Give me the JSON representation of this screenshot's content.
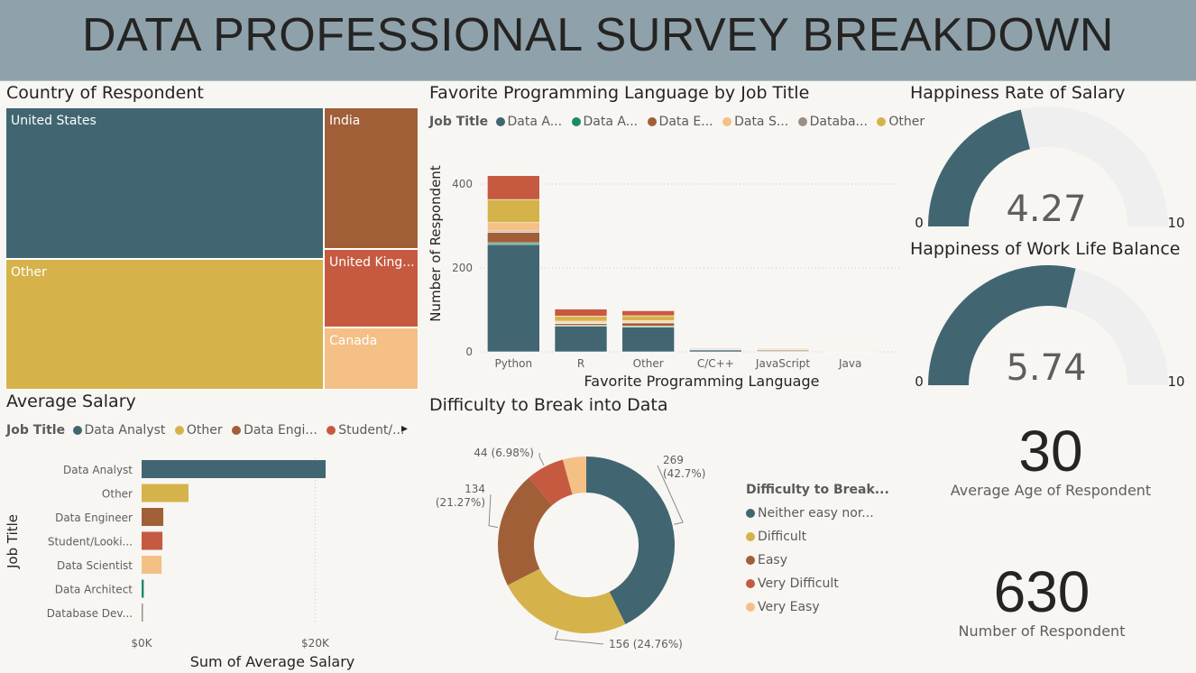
{
  "header": {
    "title": "DATA PROFESSIONAL SURVEY BREAKDOWN"
  },
  "colors": {
    "data_analyst": "#416671",
    "other": "#d6b24b",
    "data_engineer": "#a15f38",
    "student": "#c65a41",
    "data_scientist": "#f4c086",
    "data_architect": "#1b8a6b",
    "database_dev": "#9b8f85",
    "gauge_track": "#efefef"
  },
  "treemap": {
    "title": "Country of Respondent",
    "tiles": [
      {
        "label": "United States",
        "color": "#416671"
      },
      {
        "label": "Other",
        "color": "#d6b24b"
      },
      {
        "label": "India",
        "color": "#a15f38"
      },
      {
        "label": "United King...",
        "color": "#c65a41"
      },
      {
        "label": "Canada",
        "color": "#f4c086"
      }
    ]
  },
  "lang_chart": {
    "title": "Favorite Programming Language by Job Title",
    "legend_title": "Job Title",
    "legend": [
      {
        "name": "Data A...",
        "color": "#416671"
      },
      {
        "name": "Data A...",
        "color": "#1b8a6b"
      },
      {
        "name": "Data E...",
        "color": "#a15f38"
      },
      {
        "name": "Data S...",
        "color": "#f4c086"
      },
      {
        "name": "Databa...",
        "color": "#9b8f85"
      },
      {
        "name": "Other",
        "color": "#d6b24b"
      }
    ],
    "xlabel": "Favorite Programming Language",
    "ylabel": "Number of Respondent"
  },
  "salary_chart": {
    "title": "Average Salary",
    "legend_title": "Job Title",
    "legend": [
      {
        "name": "Data Analyst",
        "color": "#416671"
      },
      {
        "name": "Other",
        "color": "#d6b24b"
      },
      {
        "name": "Data Engi...",
        "color": "#a15f38"
      },
      {
        "name": "Student/...",
        "color": "#c65a41"
      }
    ],
    "more_arrow": "▸",
    "xlabel": "Sum of Average Salary",
    "ylabel": "Job Title"
  },
  "donut_chart": {
    "title": "Difficulty to Break into Data",
    "legend_title": "Difficulty to Break...",
    "legend": [
      {
        "name": "Neither easy nor...",
        "color": "#416671"
      },
      {
        "name": "Difficult",
        "color": "#d6b24b"
      },
      {
        "name": "Easy",
        "color": "#a15f38"
      },
      {
        "name": "Very Difficult",
        "color": "#c65a41"
      },
      {
        "name": "Very Easy",
        "color": "#f4c086"
      }
    ]
  },
  "gauges": [
    {
      "title": "Happiness Rate of Salary",
      "value_label": "4.27",
      "min_label": "0",
      "max_label": "10"
    },
    {
      "title": "Happiness of Work Life Balance",
      "value_label": "5.74",
      "min_label": "0",
      "max_label": "10"
    }
  ],
  "kpis": [
    {
      "value": "30",
      "label": "Average Age of Respondent"
    },
    {
      "value": "630",
      "label": "Number of Respondent"
    }
  ],
  "chart_data": [
    {
      "type": "treemap",
      "title": "Country of Respondent",
      "categories": [
        "United States",
        "Other",
        "India",
        "United Kingdom",
        "Canada"
      ],
      "values": [
        262,
        226,
        65,
        36,
        29
      ]
    },
    {
      "type": "bar",
      "stacked": true,
      "title": "Favorite Programming Language by Job Title",
      "categories": [
        "Python",
        "R",
        "Other",
        "C/C++",
        "JavaScript",
        "Java"
      ],
      "series": [
        {
          "name": "Data Analyst",
          "color": "#416671",
          "values": [
            256,
            61,
            59,
            5,
            2,
            1
          ]
        },
        {
          "name": "Data Architect",
          "color": "#1b8a6b",
          "values": [
            4,
            2,
            2,
            1,
            0,
            0
          ]
        },
        {
          "name": "Data Engineer",
          "color": "#a15f38",
          "values": [
            25,
            5,
            8,
            0,
            3,
            0
          ]
        },
        {
          "name": "Data Scientist",
          "color": "#f4c086",
          "values": [
            20,
            4,
            3,
            0,
            1,
            0
          ]
        },
        {
          "name": "Database Developer",
          "color": "#9b8f85",
          "values": [
            3,
            1,
            2,
            0,
            1,
            0
          ]
        },
        {
          "name": "Other",
          "color": "#d6b24b",
          "values": [
            55,
            12,
            12,
            1,
            2,
            1
          ]
        },
        {
          "name": "Student/Looking",
          "color": "#c65a41",
          "values": [
            57,
            17,
            12,
            1,
            0,
            0
          ]
        }
      ],
      "yticks": [
        0,
        200,
        400
      ],
      "ylim": [
        0,
        480
      ],
      "xlabel": "Favorite Programming Language",
      "ylabel": "Number of Respondent"
    },
    {
      "type": "bar",
      "orientation": "horizontal",
      "title": "Average Salary",
      "categories": [
        "Data Analyst",
        "Other",
        "Data Engineer",
        "Student/Looki...",
        "Data Scientist",
        "Data Architect",
        "Database Dev..."
      ],
      "values": [
        21200,
        5400,
        2500,
        2400,
        2300,
        250,
        150
      ],
      "colors": [
        "#416671",
        "#d6b24b",
        "#a15f38",
        "#c65a41",
        "#f4c086",
        "#1b8a6b",
        "#9b8f85"
      ],
      "xticks": [
        0,
        20000
      ],
      "xtick_labels": [
        "$0K",
        "$20K"
      ],
      "xlim": [
        0,
        32000
      ],
      "xlabel": "Sum of Average Salary",
      "ylabel": "Job Title"
    },
    {
      "type": "pie",
      "donut": true,
      "title": "Difficulty to Break into Data",
      "categories": [
        "Neither easy nor difficult",
        "Difficult",
        "Easy",
        "Very Difficult",
        "Very Easy"
      ],
      "values": [
        269,
        156,
        134,
        44,
        27
      ],
      "data_labels": [
        "269 (42.7%)",
        "156 (24.76%)",
        "134 (21.27%)",
        "44 (6.98%)",
        ""
      ],
      "colors": [
        "#416671",
        "#d6b24b",
        "#a15f38",
        "#c65a41",
        "#f4c086"
      ]
    },
    {
      "type": "gauge",
      "title": "Happiness Rate of Salary",
      "value": 4.27,
      "min": 0,
      "max": 10
    },
    {
      "type": "gauge",
      "title": "Happiness of Work Life Balance",
      "value": 5.74,
      "min": 0,
      "max": 10
    }
  ]
}
